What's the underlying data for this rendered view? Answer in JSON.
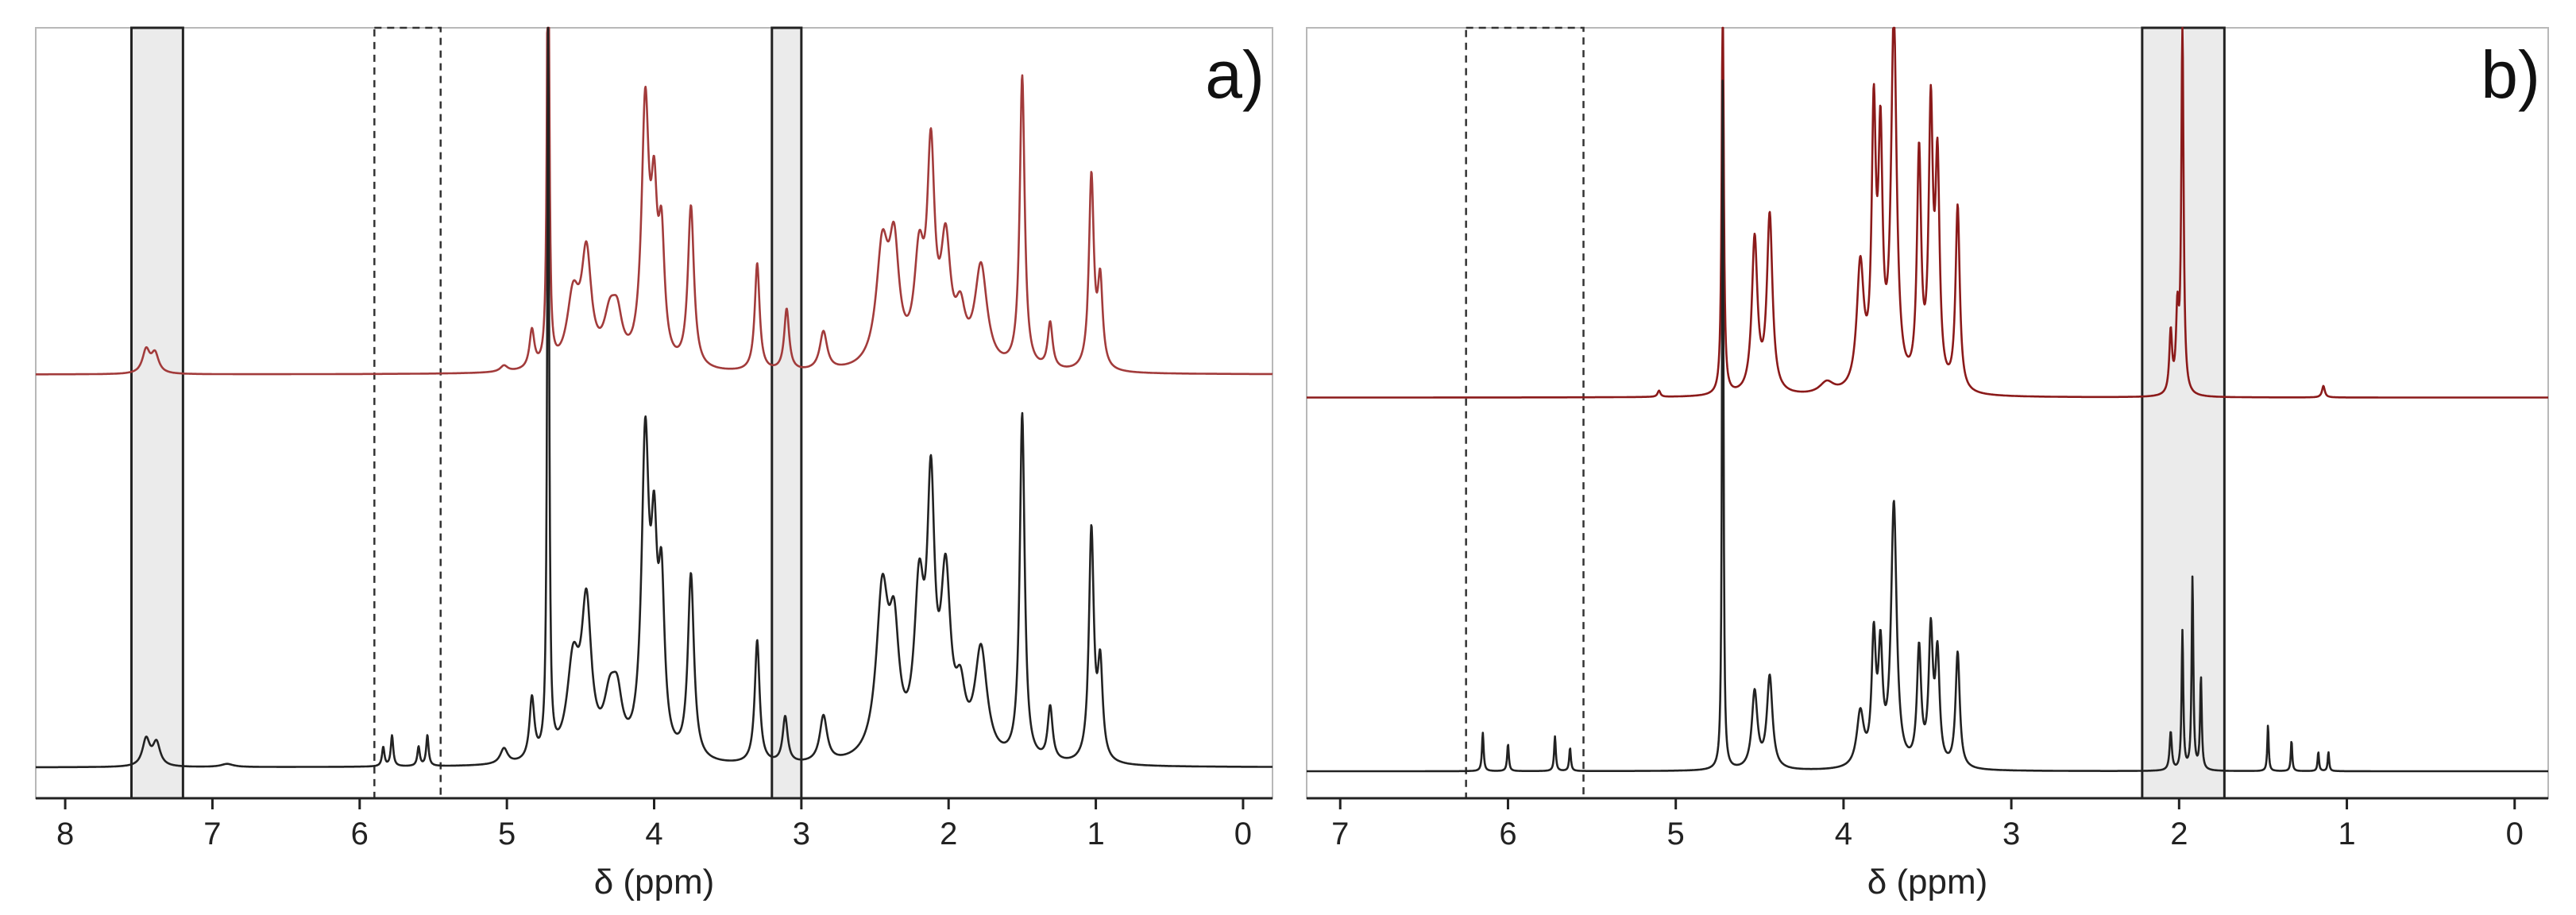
{
  "chart_data": [
    {
      "type": "line",
      "panel_label": "a)",
      "xlabel": "δ (ppm)",
      "ylabel": "",
      "xlim": [
        8.2,
        -0.2
      ],
      "ylim": [
        0,
        1
      ],
      "x_ticks": [
        "8",
        "7",
        "6",
        "5",
        "4",
        "3",
        "2",
        "1",
        "0"
      ],
      "grid": false,
      "series": [
        {
          "color": "#a23b3b",
          "baseline": 0.55,
          "peaks": [
            {
              "ppm": 7.45,
              "height": 0.03,
              "width": 0.03
            },
            {
              "ppm": 7.39,
              "height": 0.025,
              "width": 0.03
            },
            {
              "ppm": 5.02,
              "height": 0.008,
              "width": 0.03
            },
            {
              "ppm": 4.83,
              "height": 0.05,
              "width": 0.02
            },
            {
              "ppm": 4.72,
              "height": 0.75,
              "width": 0.008
            },
            {
              "ppm": 4.55,
              "height": 0.09,
              "width": 0.05
            },
            {
              "ppm": 4.46,
              "height": 0.14,
              "width": 0.04
            },
            {
              "ppm": 4.3,
              "height": 0.06,
              "width": 0.05
            },
            {
              "ppm": 4.25,
              "height": 0.05,
              "width": 0.04
            },
            {
              "ppm": 4.06,
              "height": 0.33,
              "width": 0.03
            },
            {
              "ppm": 4.0,
              "height": 0.18,
              "width": 0.025
            },
            {
              "ppm": 3.95,
              "height": 0.15,
              "width": 0.025
            },
            {
              "ppm": 3.75,
              "height": 0.21,
              "width": 0.025
            },
            {
              "ppm": 3.3,
              "height": 0.14,
              "width": 0.02
            },
            {
              "ppm": 3.1,
              "height": 0.08,
              "width": 0.02
            },
            {
              "ppm": 2.85,
              "height": 0.05,
              "width": 0.03
            },
            {
              "ppm": 2.45,
              "height": 0.15,
              "width": 0.05
            },
            {
              "ppm": 2.37,
              "height": 0.14,
              "width": 0.04
            },
            {
              "ppm": 2.2,
              "height": 0.13,
              "width": 0.04
            },
            {
              "ppm": 2.12,
              "height": 0.26,
              "width": 0.03
            },
            {
              "ppm": 2.02,
              "height": 0.15,
              "width": 0.04
            },
            {
              "ppm": 1.92,
              "height": 0.06,
              "width": 0.04
            },
            {
              "ppm": 1.78,
              "height": 0.13,
              "width": 0.05
            },
            {
              "ppm": 1.5,
              "height": 0.38,
              "width": 0.02
            },
            {
              "ppm": 1.31,
              "height": 0.06,
              "width": 0.02
            },
            {
              "ppm": 1.03,
              "height": 0.25,
              "width": 0.02
            },
            {
              "ppm": 0.97,
              "height": 0.11,
              "width": 0.02
            }
          ]
        },
        {
          "color": "#222222",
          "baseline": 0.04,
          "peaks": [
            {
              "ppm": 7.45,
              "height": 0.035,
              "width": 0.03
            },
            {
              "ppm": 7.38,
              "height": 0.03,
              "width": 0.03
            },
            {
              "ppm": 6.9,
              "height": 0.004,
              "width": 0.05
            },
            {
              "ppm": 5.84,
              "height": 0.025,
              "width": 0.01
            },
            {
              "ppm": 5.78,
              "height": 0.04,
              "width": 0.01
            },
            {
              "ppm": 5.6,
              "height": 0.025,
              "width": 0.01
            },
            {
              "ppm": 5.54,
              "height": 0.04,
              "width": 0.01
            },
            {
              "ppm": 5.02,
              "height": 0.02,
              "width": 0.03
            },
            {
              "ppm": 4.83,
              "height": 0.08,
              "width": 0.02
            },
            {
              "ppm": 4.72,
              "height": 0.95,
              "width": 0.008
            },
            {
              "ppm": 4.55,
              "height": 0.12,
              "width": 0.05
            },
            {
              "ppm": 4.46,
              "height": 0.19,
              "width": 0.04
            },
            {
              "ppm": 4.3,
              "height": 0.07,
              "width": 0.05
            },
            {
              "ppm": 4.25,
              "height": 0.06,
              "width": 0.04
            },
            {
              "ppm": 4.06,
              "height": 0.4,
              "width": 0.03
            },
            {
              "ppm": 4.0,
              "height": 0.23,
              "width": 0.025
            },
            {
              "ppm": 3.95,
              "height": 0.2,
              "width": 0.025
            },
            {
              "ppm": 3.75,
              "height": 0.24,
              "width": 0.025
            },
            {
              "ppm": 3.3,
              "height": 0.16,
              "width": 0.02
            },
            {
              "ppm": 3.11,
              "height": 0.06,
              "width": 0.02
            },
            {
              "ppm": 2.85,
              "height": 0.06,
              "width": 0.03
            },
            {
              "ppm": 2.45,
              "height": 0.21,
              "width": 0.05
            },
            {
              "ppm": 2.37,
              "height": 0.14,
              "width": 0.04
            },
            {
              "ppm": 2.2,
              "height": 0.2,
              "width": 0.04
            },
            {
              "ppm": 2.12,
              "height": 0.32,
              "width": 0.03
            },
            {
              "ppm": 2.02,
              "height": 0.22,
              "width": 0.04
            },
            {
              "ppm": 1.92,
              "height": 0.07,
              "width": 0.04
            },
            {
              "ppm": 1.78,
              "height": 0.14,
              "width": 0.05
            },
            {
              "ppm": 1.5,
              "height": 0.45,
              "width": 0.02
            },
            {
              "ppm": 1.31,
              "height": 0.07,
              "width": 0.02
            },
            {
              "ppm": 1.03,
              "height": 0.3,
              "width": 0.02
            },
            {
              "ppm": 0.97,
              "height": 0.12,
              "width": 0.02
            }
          ]
        }
      ],
      "highlight_regions": [
        {
          "from": 7.55,
          "to": 7.2,
          "style": "shaded"
        },
        {
          "from": 5.9,
          "to": 5.45,
          "style": "dashed"
        },
        {
          "from": 3.2,
          "to": 3.0,
          "style": "shaded"
        }
      ]
    },
    {
      "type": "line",
      "panel_label": "b)",
      "xlabel": "δ (ppm)",
      "ylabel": "",
      "xlim": [
        7.2,
        -0.2
      ],
      "ylim": [
        0,
        1
      ],
      "x_ticks": [
        "7",
        "6",
        "5",
        "4",
        "3",
        "2",
        "1",
        "0"
      ],
      "grid": false,
      "series": [
        {
          "color": "#8b1a1a",
          "baseline": 0.52,
          "peaks": [
            {
              "ppm": 5.1,
              "height": 0.008,
              "width": 0.01
            },
            {
              "ppm": 4.72,
              "height": 0.55,
              "width": 0.007
            },
            {
              "ppm": 4.53,
              "height": 0.2,
              "width": 0.02
            },
            {
              "ppm": 4.44,
              "height": 0.23,
              "width": 0.02
            },
            {
              "ppm": 4.1,
              "height": 0.015,
              "width": 0.05
            },
            {
              "ppm": 3.9,
              "height": 0.16,
              "width": 0.025
            },
            {
              "ppm": 3.82,
              "height": 0.34,
              "width": 0.015
            },
            {
              "ppm": 3.78,
              "height": 0.3,
              "width": 0.015
            },
            {
              "ppm": 3.7,
              "height": 0.48,
              "width": 0.02
            },
            {
              "ppm": 3.55,
              "height": 0.3,
              "width": 0.015
            },
            {
              "ppm": 3.48,
              "height": 0.35,
              "width": 0.015
            },
            {
              "ppm": 3.44,
              "height": 0.28,
              "width": 0.015
            },
            {
              "ppm": 3.32,
              "height": 0.24,
              "width": 0.015
            },
            {
              "ppm": 2.05,
              "height": 0.08,
              "width": 0.01
            },
            {
              "ppm": 2.01,
              "height": 0.1,
              "width": 0.01
            },
            {
              "ppm": 1.98,
              "height": 0.48,
              "width": 0.008
            },
            {
              "ppm": 1.14,
              "height": 0.015,
              "width": 0.01
            }
          ]
        },
        {
          "color": "#222222",
          "baseline": 0.035,
          "peaks": [
            {
              "ppm": 6.15,
              "height": 0.05,
              "width": 0.006
            },
            {
              "ppm": 6.0,
              "height": 0.035,
              "width": 0.006
            },
            {
              "ppm": 5.72,
              "height": 0.045,
              "width": 0.006
            },
            {
              "ppm": 5.63,
              "height": 0.03,
              "width": 0.006
            },
            {
              "ppm": 4.72,
              "height": 0.93,
              "width": 0.005
            },
            {
              "ppm": 4.53,
              "height": 0.1,
              "width": 0.02
            },
            {
              "ppm": 4.44,
              "height": 0.12,
              "width": 0.02
            },
            {
              "ppm": 3.9,
              "height": 0.07,
              "width": 0.025
            },
            {
              "ppm": 3.82,
              "height": 0.16,
              "width": 0.015
            },
            {
              "ppm": 3.78,
              "height": 0.14,
              "width": 0.015
            },
            {
              "ppm": 3.7,
              "height": 0.34,
              "width": 0.02
            },
            {
              "ppm": 3.55,
              "height": 0.15,
              "width": 0.015
            },
            {
              "ppm": 3.48,
              "height": 0.17,
              "width": 0.015
            },
            {
              "ppm": 3.44,
              "height": 0.14,
              "width": 0.015
            },
            {
              "ppm": 3.32,
              "height": 0.15,
              "width": 0.015
            },
            {
              "ppm": 2.05,
              "height": 0.05,
              "width": 0.008
            },
            {
              "ppm": 1.98,
              "height": 0.18,
              "width": 0.006
            },
            {
              "ppm": 1.92,
              "height": 0.25,
              "width": 0.006
            },
            {
              "ppm": 1.87,
              "height": 0.12,
              "width": 0.006
            },
            {
              "ppm": 1.47,
              "height": 0.06,
              "width": 0.005
            },
            {
              "ppm": 1.33,
              "height": 0.04,
              "width": 0.005
            },
            {
              "ppm": 1.17,
              "height": 0.025,
              "width": 0.005
            },
            {
              "ppm": 1.11,
              "height": 0.025,
              "width": 0.005
            }
          ]
        }
      ],
      "highlight_regions": [
        {
          "from": 6.25,
          "to": 5.55,
          "style": "dashed"
        },
        {
          "from": 2.22,
          "to": 1.73,
          "style": "shaded"
        }
      ]
    }
  ]
}
